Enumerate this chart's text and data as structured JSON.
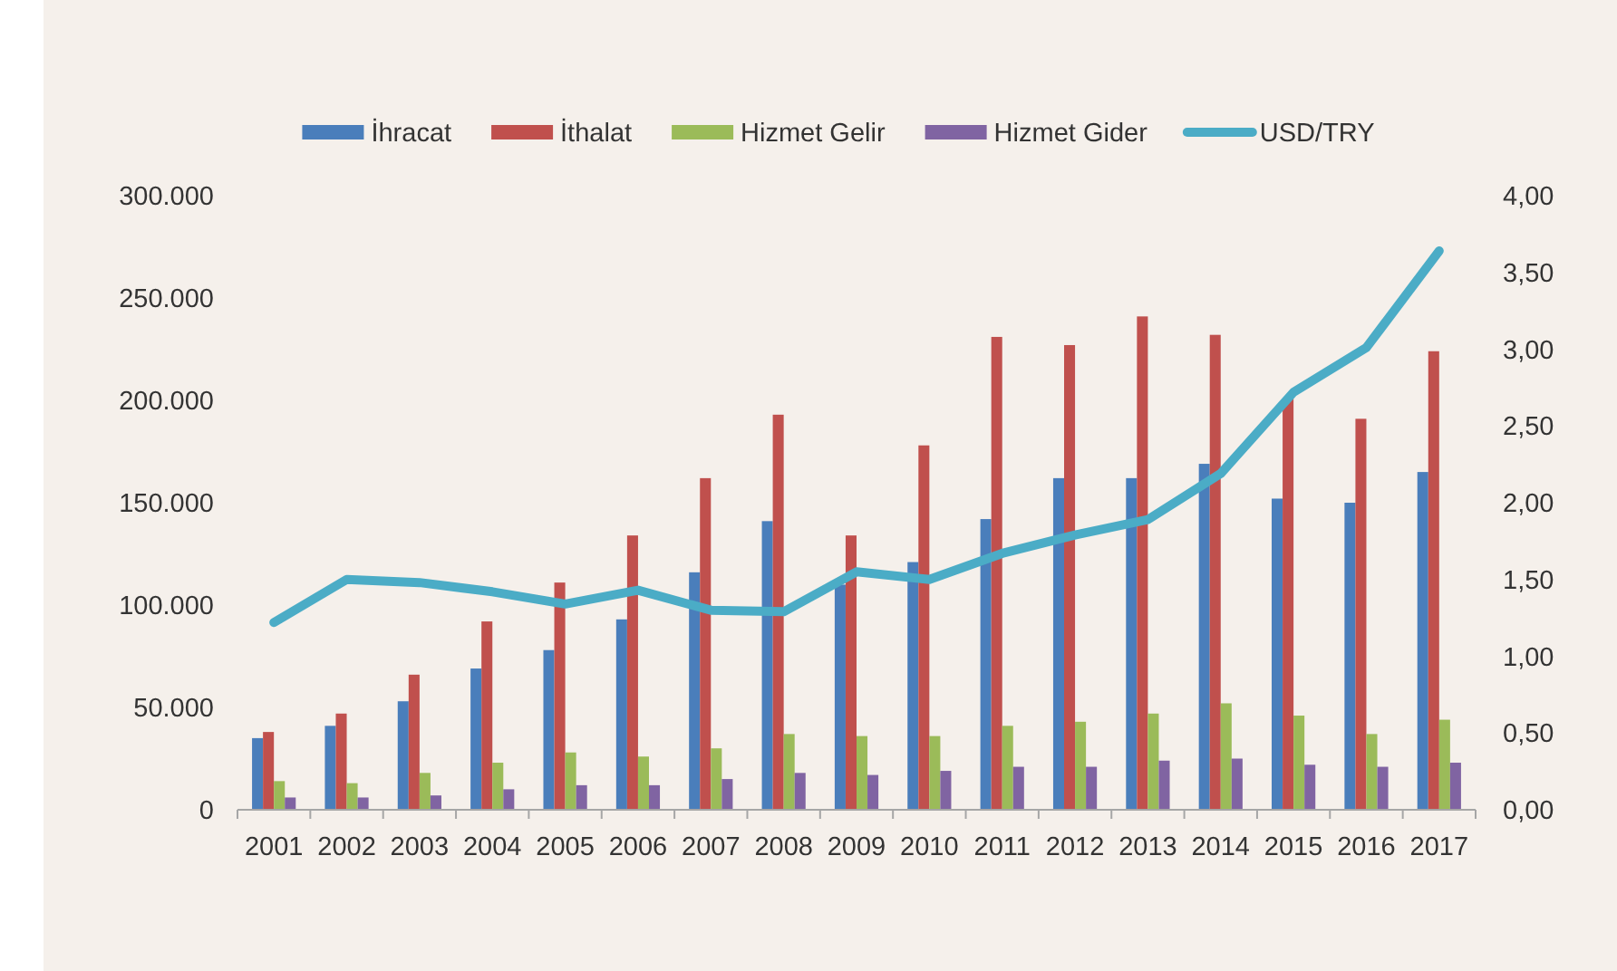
{
  "chart_data": {
    "type": "bar",
    "categories": [
      "2001",
      "2002",
      "2003",
      "2004",
      "2005",
      "2006",
      "2007",
      "2008",
      "2009",
      "2010",
      "2011",
      "2012",
      "2013",
      "2014",
      "2015",
      "2016",
      "2017"
    ],
    "series": [
      {
        "name": "İhracat",
        "color": "#4a7ebb",
        "values": [
          35000,
          41000,
          53000,
          69000,
          78000,
          93000,
          116000,
          141000,
          110000,
          121000,
          142000,
          162000,
          162000,
          169000,
          152000,
          150000,
          165000
        ]
      },
      {
        "name": "İthalat",
        "color": "#c0504d",
        "values": [
          38000,
          47000,
          66000,
          92000,
          111000,
          134000,
          162000,
          193000,
          134000,
          178000,
          231000,
          227000,
          241000,
          232000,
          201000,
          191000,
          224000
        ]
      },
      {
        "name": "Hizmet Gelir",
        "color": "#9bbb59",
        "values": [
          14000,
          13000,
          18000,
          23000,
          28000,
          26000,
          30000,
          37000,
          36000,
          36000,
          41000,
          43000,
          47000,
          52000,
          46000,
          37000,
          44000
        ]
      },
      {
        "name": "Hizmet Gider",
        "color": "#8064a2",
        "values": [
          6000,
          6000,
          7000,
          10000,
          12000,
          12000,
          15000,
          18000,
          17000,
          19000,
          21000,
          21000,
          24000,
          25000,
          22000,
          21000,
          23000
        ]
      },
      {
        "name": "USD/TRY",
        "type": "line",
        "axis": "y2",
        "color": "#4bacc6",
        "values": [
          1.22,
          1.5,
          1.48,
          1.42,
          1.34,
          1.43,
          1.3,
          1.29,
          1.55,
          1.5,
          1.67,
          1.79,
          1.89,
          2.19,
          2.72,
          3.01,
          3.64
        ]
      }
    ],
    "ylim": [
      0,
      300000
    ],
    "yticks": [
      0,
      {
        "value": 50000,
        "label": "50.000"
      },
      {
        "value": 100000,
        "label": "100.000"
      },
      {
        "value": 150000,
        "label": "150.000"
      },
      {
        "value": 200000,
        "label": "200.000"
      },
      {
        "value": 250000,
        "label": "250.000"
      },
      {
        "value": 300000,
        "label": "300.000"
      }
    ],
    "y2lim": [
      0,
      4
    ],
    "y2ticks": [
      {
        "value": 0,
        "label": "0,00"
      },
      {
        "value": 0.5,
        "label": "0,50"
      },
      {
        "value": 1,
        "label": "1,00"
      },
      {
        "value": 1.5,
        "label": "1,50"
      },
      {
        "value": 2,
        "label": "2,00"
      },
      {
        "value": 2.5,
        "label": "2,50"
      },
      {
        "value": 3,
        "label": "3,00"
      },
      {
        "value": 3.5,
        "label": "3,50"
      },
      {
        "value": 4,
        "label": "4,00"
      }
    ],
    "grid": false,
    "legend": "top",
    "marker": "none",
    "line_style": "solid"
  }
}
